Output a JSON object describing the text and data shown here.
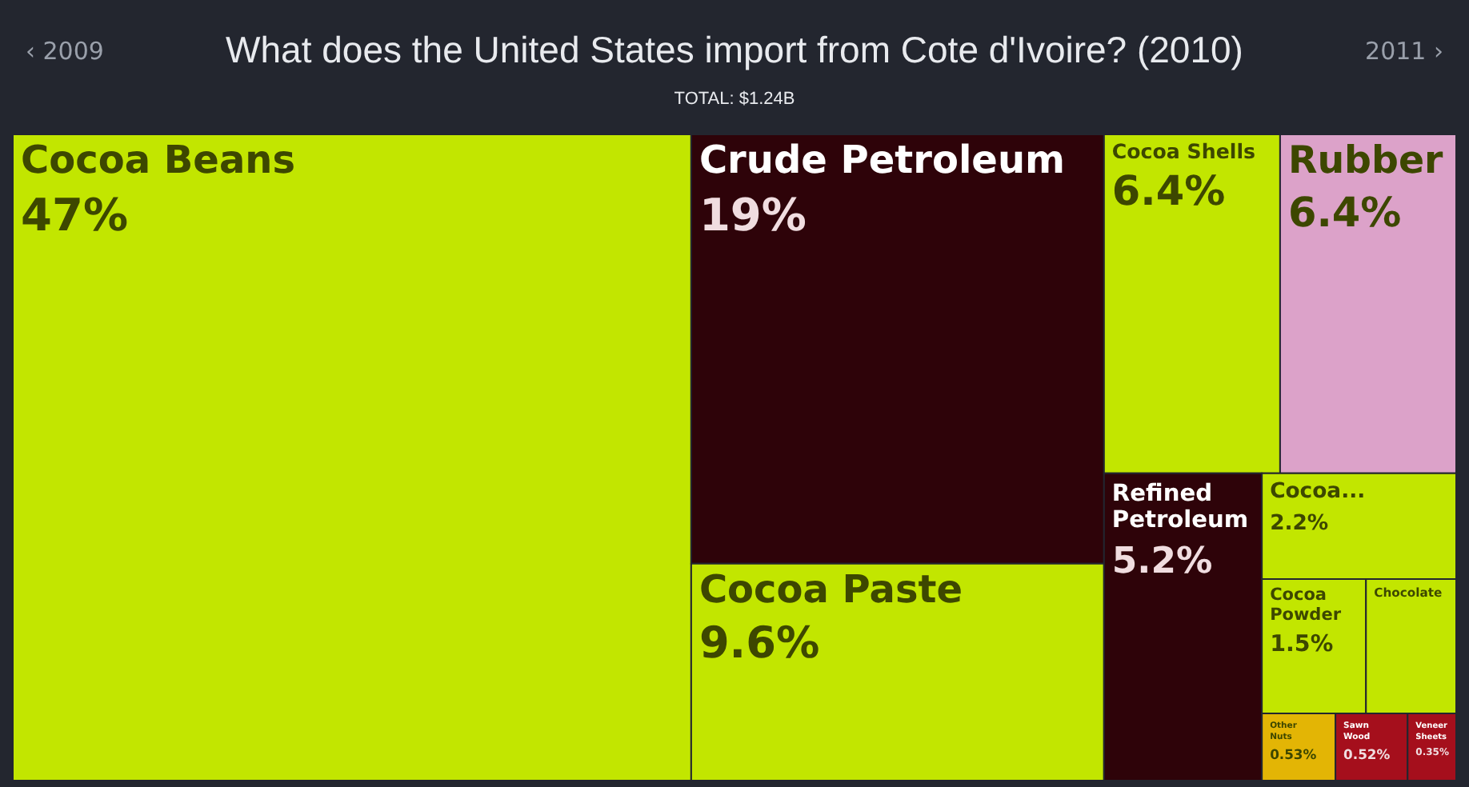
{
  "chart_data": {
    "type": "other",
    "title": "What does the United States import from Cote d'Ivoire? (2010)",
    "subtitle": "TOTAL: $1.24B",
    "annotations": [
      "‹ 2009",
      "2011 ›"
    ],
    "categories": [
      "Cocoa Beans",
      "Crude Petroleum",
      "Cocoa Paste",
      "Cocoa Shells",
      "Rubber",
      "Refined Petroleum",
      "Cocoa...",
      "Cocoa Powder",
      "Chocolate",
      "Other Nuts",
      "Sawn Wood",
      "Veneer Sheets"
    ],
    "values": [
      47,
      19,
      9.6,
      6.4,
      6.4,
      5.2,
      2.2,
      1.5,
      null,
      0.53,
      0.52,
      0.35
    ],
    "value_labels": [
      "47%",
      "19%",
      "9.6%",
      "6.4%",
      "6.4%",
      "5.2%",
      "2.2%",
      "1.5%",
      null,
      "0.53%",
      "0.52%",
      "0.35%"
    ],
    "colors": [
      "#c2e600",
      "#2e0309",
      "#c2e600",
      "#c2e600",
      "#dca2c9",
      "#2e0309",
      "#c2e600",
      "#c2e600",
      "#c2e600",
      "#e3b505",
      "#a50f1c",
      "#a50f1c"
    ]
  }
}
